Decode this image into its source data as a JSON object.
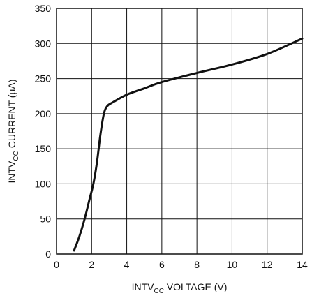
{
  "chart_data": {
    "type": "line",
    "title": "",
    "xlabel": {
      "main": "INTV",
      "sub": "CC",
      "rest": " VOLTAGE (V)"
    },
    "ylabel": {
      "main": "INTV",
      "sub": "CC",
      "rest": " CURRENT (µA)"
    },
    "xlim": [
      0,
      14
    ],
    "ylim": [
      0,
      350
    ],
    "x_ticks": [
      0,
      2,
      4,
      6,
      8,
      10,
      12,
      14
    ],
    "y_ticks": [
      0,
      50,
      100,
      150,
      200,
      250,
      300,
      350
    ],
    "grid": true,
    "legend": "none",
    "line_color": "#111111",
    "series": [
      {
        "values": [
          [
            1.0,
            5
          ],
          [
            1.3,
            25
          ],
          [
            1.6,
            50
          ],
          [
            1.9,
            80
          ],
          [
            2.1,
            100
          ],
          [
            2.3,
            130
          ],
          [
            2.5,
            170
          ],
          [
            2.7,
            200
          ],
          [
            2.9,
            211
          ],
          [
            3.2,
            216
          ],
          [
            4.0,
            227
          ],
          [
            5.0,
            236
          ],
          [
            6.0,
            245
          ],
          [
            8.0,
            258
          ],
          [
            10.0,
            270
          ],
          [
            12.0,
            285
          ],
          [
            14.0,
            307
          ]
        ]
      }
    ]
  }
}
